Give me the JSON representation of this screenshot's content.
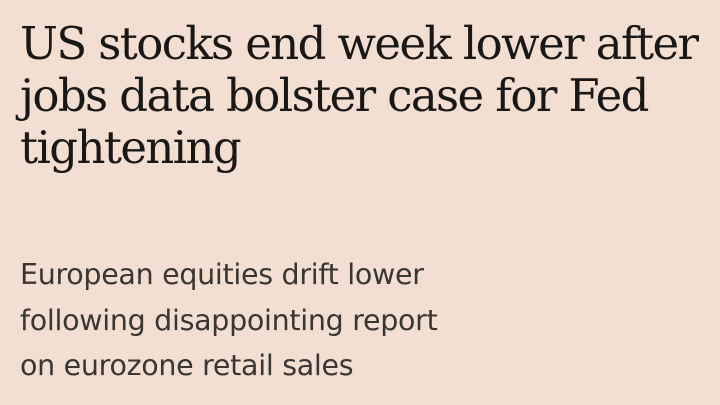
{
  "article": {
    "headline": "US stocks end week lower after\njobs data bolster case for Fed\ntightening",
    "standfirst": "European equities drift lower\nfollowing disappointing report\non eurozone retail sales"
  }
}
